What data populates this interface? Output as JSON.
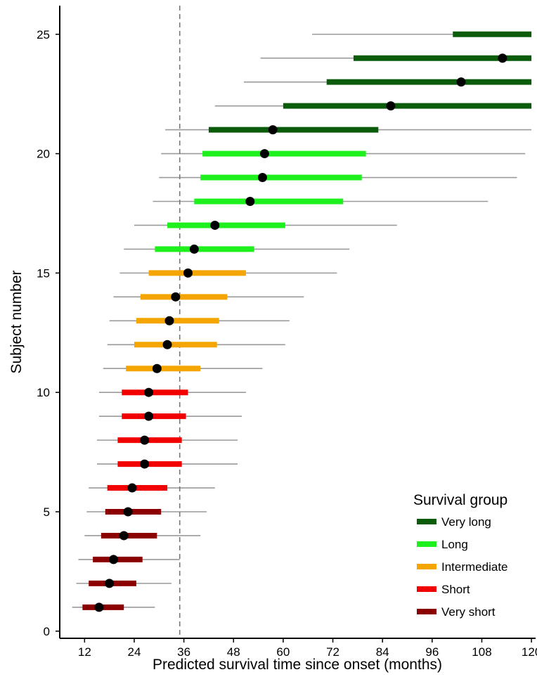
{
  "chart_data": {
    "type": "interval",
    "xlabel": "Predicted survival time since onset (months)",
    "ylabel": "Subject number",
    "xlim": [
      6,
      121
    ],
    "ylim": [
      -0.3,
      26.2
    ],
    "x_ticks": [
      12,
      24,
      36,
      48,
      60,
      72,
      84,
      96,
      108,
      120
    ],
    "y_ticks": [
      0,
      5,
      10,
      15,
      20,
      25
    ],
    "reference_line_x": 35,
    "grid": false,
    "legend": {
      "title": "Survival group",
      "position": "bottom-right",
      "entries": [
        {
          "name": "Very long",
          "color": "#0a5c0a"
        },
        {
          "name": "Long",
          "color": "#1ef01e"
        },
        {
          "name": "Intermediate",
          "color": "#f5a500"
        },
        {
          "name": "Short",
          "color": "#f20000"
        },
        {
          "name": "Very short",
          "color": "#8b0000"
        }
      ]
    },
    "subjects": [
      {
        "subject": 1,
        "group": "Very short",
        "median": 15.5,
        "inner": [
          11.5,
          21.5
        ],
        "outer": [
          9.0,
          29.0
        ]
      },
      {
        "subject": 2,
        "group": "Very short",
        "median": 18.0,
        "inner": [
          13.0,
          24.5
        ],
        "outer": [
          10.0,
          33.0
        ]
      },
      {
        "subject": 3,
        "group": "Very short",
        "median": 19.0,
        "inner": [
          14.0,
          26.0
        ],
        "outer": [
          10.5,
          35.0
        ]
      },
      {
        "subject": 4,
        "group": "Very short",
        "median": 21.5,
        "inner": [
          16.0,
          29.5
        ],
        "outer": [
          12.0,
          40.0
        ]
      },
      {
        "subject": 5,
        "group": "Very short",
        "median": 22.5,
        "inner": [
          17.0,
          30.5
        ],
        "outer": [
          12.5,
          41.5
        ]
      },
      {
        "subject": 6,
        "group": "Short",
        "median": 23.5,
        "inner": [
          17.5,
          32.0
        ],
        "outer": [
          13.0,
          43.5
        ]
      },
      {
        "subject": 7,
        "group": "Short",
        "median": 26.5,
        "inner": [
          20.0,
          35.5
        ],
        "outer": [
          15.0,
          49.0
        ]
      },
      {
        "subject": 8,
        "group": "Short",
        "median": 26.5,
        "inner": [
          20.0,
          35.5
        ],
        "outer": [
          15.0,
          49.0
        ]
      },
      {
        "subject": 9,
        "group": "Short",
        "median": 27.5,
        "inner": [
          21.0,
          36.5
        ],
        "outer": [
          15.5,
          50.0
        ]
      },
      {
        "subject": 10,
        "group": "Short",
        "median": 27.5,
        "inner": [
          21.0,
          37.0
        ],
        "outer": [
          15.5,
          51.0
        ]
      },
      {
        "subject": 11,
        "group": "Intermediate",
        "median": 29.5,
        "inner": [
          22.0,
          40.0
        ],
        "outer": [
          16.5,
          55.0
        ]
      },
      {
        "subject": 12,
        "group": "Intermediate",
        "median": 32.0,
        "inner": [
          24.0,
          44.0
        ],
        "outer": [
          17.5,
          60.5
        ]
      },
      {
        "subject": 13,
        "group": "Intermediate",
        "median": 32.5,
        "inner": [
          24.5,
          44.5
        ],
        "outer": [
          18.0,
          61.5
        ]
      },
      {
        "subject": 14,
        "group": "Intermediate",
        "median": 34.0,
        "inner": [
          25.5,
          46.5
        ],
        "outer": [
          19.0,
          65.0
        ]
      },
      {
        "subject": 15,
        "group": "Intermediate",
        "median": 37.0,
        "inner": [
          27.5,
          51.0
        ],
        "outer": [
          20.5,
          73.0
        ]
      },
      {
        "subject": 16,
        "group": "Long",
        "median": 38.5,
        "inner": [
          29.0,
          53.0
        ],
        "outer": [
          21.5,
          76.0
        ]
      },
      {
        "subject": 17,
        "group": "Long",
        "median": 43.5,
        "inner": [
          32.0,
          60.5
        ],
        "outer": [
          24.0,
          87.5
        ]
      },
      {
        "subject": 18,
        "group": "Long",
        "median": 52.0,
        "inner": [
          38.5,
          74.5
        ],
        "outer": [
          28.5,
          109.5
        ]
      },
      {
        "subject": 19,
        "group": "Long",
        "median": 55.0,
        "inner": [
          40.0,
          79.0
        ],
        "outer": [
          30.0,
          116.5
        ]
      },
      {
        "subject": 20,
        "group": "Long",
        "median": 55.5,
        "inner": [
          40.5,
          80.0
        ],
        "outer": [
          30.5,
          118.5
        ]
      },
      {
        "subject": 21,
        "group": "Very long",
        "median": 57.5,
        "inner": [
          42.0,
          83.0
        ],
        "outer": [
          31.5,
          120.0
        ]
      },
      {
        "subject": 22,
        "group": "Very long",
        "median": 86.0,
        "inner": [
          60.0,
          120.0
        ],
        "outer": [
          43.5,
          120.0
        ]
      },
      {
        "subject": 23,
        "group": "Very long",
        "median": 103.0,
        "inner": [
          70.5,
          120.0
        ],
        "outer": [
          50.5,
          120.0
        ]
      },
      {
        "subject": 24,
        "group": "Very long",
        "median": 113.0,
        "inner": [
          77.0,
          120.0
        ],
        "outer": [
          54.5,
          120.0
        ]
      },
      {
        "subject": 25,
        "group": "Very long",
        "median": null,
        "inner": [
          101.0,
          120.0
        ],
        "outer": [
          67.0,
          120.0
        ]
      }
    ]
  }
}
